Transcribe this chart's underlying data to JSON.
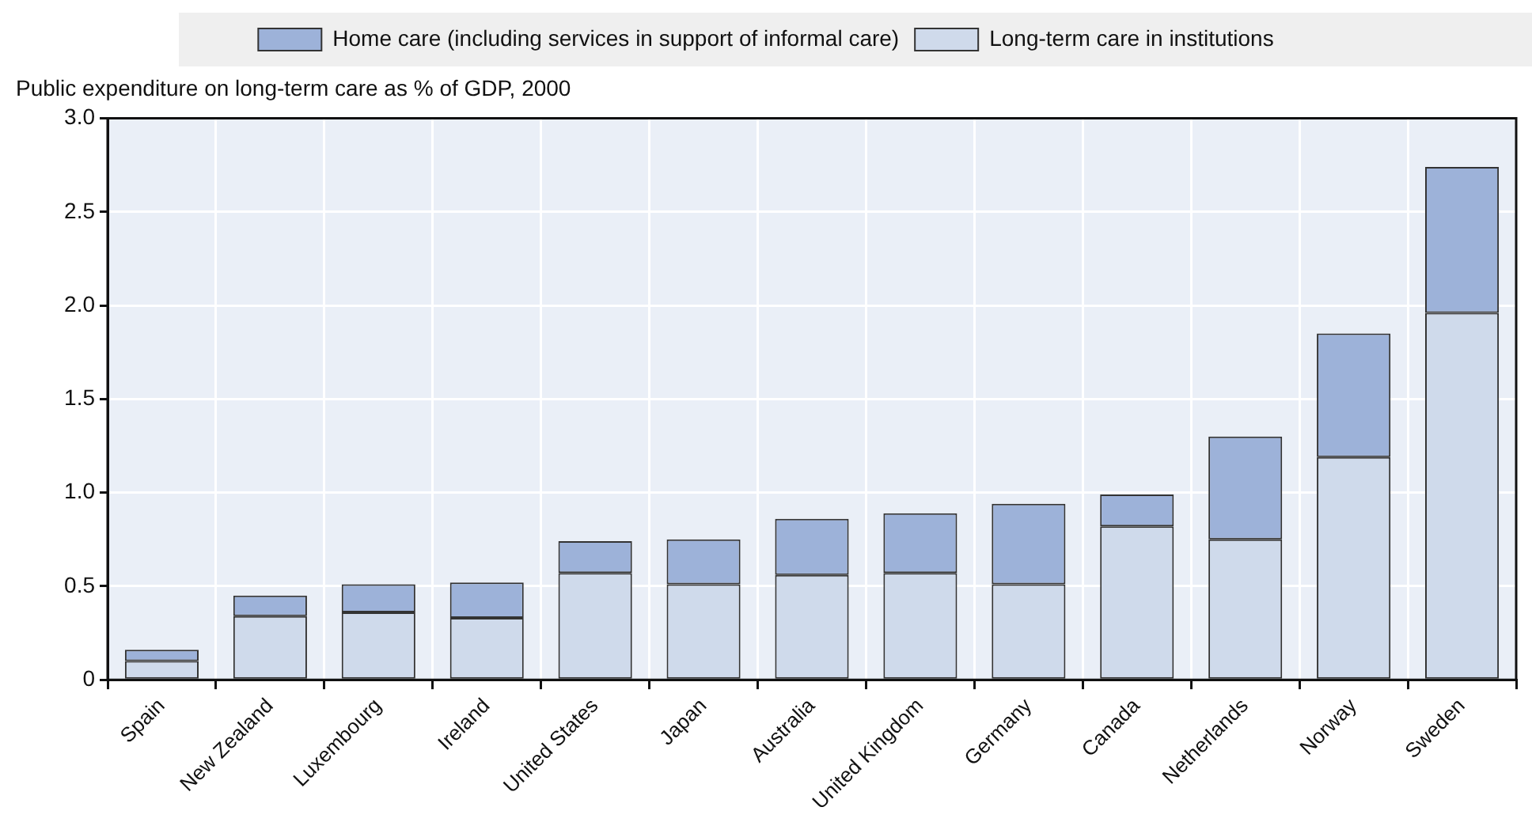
{
  "chart_data": {
    "type": "bar",
    "ylabel": "Public expenditure on long-term care as % of GDP, 2000",
    "categories": [
      "Spain",
      "New Zealand",
      "Luxembourg",
      "Ireland",
      "United States",
      "Japan",
      "Australia",
      "United Kingdom",
      "Germany",
      "Canada",
      "Netherlands",
      "Norway",
      "Sweden"
    ],
    "stacked": true,
    "series": [
      {
        "name": "Long-term care in institutions",
        "color": "#cfdaeb",
        "values": [
          0.1,
          0.34,
          0.36,
          0.33,
          0.57,
          0.51,
          0.56,
          0.57,
          0.51,
          0.82,
          0.75,
          1.19,
          1.96
        ]
      },
      {
        "name": "Home care (including services in support of informal care)",
        "color": "#9db2d9",
        "values": [
          0.06,
          0.11,
          0.15,
          0.19,
          0.17,
          0.24,
          0.3,
          0.32,
          0.43,
          0.17,
          0.55,
          0.66,
          0.78
        ]
      }
    ],
    "ylim": [
      0,
      3
    ],
    "yticks": [
      0,
      {
        "value": 0.5,
        "label": "0.5"
      },
      {
        "value": 1,
        "label": "1.0"
      },
      {
        "value": 1.5,
        "label": "1.5"
      },
      {
        "value": 2,
        "label": "2.0"
      },
      {
        "value": 2.5,
        "label": "2.5"
      },
      {
        "value": 3,
        "label": "3.0"
      }
    ],
    "grid": true,
    "legend": "top"
  }
}
